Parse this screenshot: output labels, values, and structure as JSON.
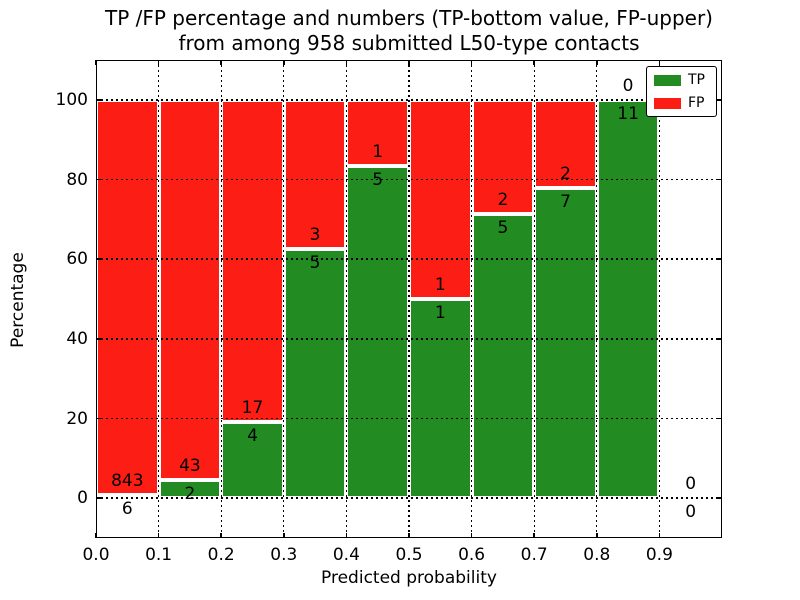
{
  "figure": {
    "title_line1": "TP /FP percentage and numbers (TP-bottom value, FP-upper)",
    "title_line2": "from among 958 submitted L50-type contacts"
  },
  "chart_data": {
    "type": "bar",
    "stacked": true,
    "normalized": "percent",
    "title": "TP /FP percentage and numbers (TP-bottom value, FP-upper) from among 958 submitted L50-type contacts",
    "xlabel": "Predicted probability",
    "ylabel": "Percentage",
    "total_contacts": 958,
    "xlim": [
      0.0,
      1.0
    ],
    "ylim": [
      -10,
      110
    ],
    "x_tick_labels": [
      "0.0",
      "0.1",
      "0.2",
      "0.3",
      "0.4",
      "0.5",
      "0.6",
      "0.7",
      "0.8",
      "0.9"
    ],
    "y_tick_values": [
      0,
      20,
      40,
      60,
      80,
      100
    ],
    "grid": "dotted black, on top of bars",
    "bar_edge_color": "#ffffff",
    "colors": {
      "tp": "#228b22",
      "fp": "#fc1d14"
    },
    "legend": {
      "position": "upper right",
      "entries": [
        {
          "label": "TP",
          "color": "#228b22"
        },
        {
          "label": "FP",
          "color": "#fc1d14"
        }
      ]
    },
    "bins": [
      {
        "range": [
          0.0,
          0.1
        ],
        "tp": 6,
        "fp": 843
      },
      {
        "range": [
          0.1,
          0.2
        ],
        "tp": 2,
        "fp": 43
      },
      {
        "range": [
          0.2,
          0.3
        ],
        "tp": 4,
        "fp": 17
      },
      {
        "range": [
          0.3,
          0.4
        ],
        "tp": 5,
        "fp": 3
      },
      {
        "range": [
          0.4,
          0.5
        ],
        "tp": 5,
        "fp": 1
      },
      {
        "range": [
          0.5,
          0.6
        ],
        "tp": 1,
        "fp": 1
      },
      {
        "range": [
          0.6,
          0.7
        ],
        "tp": 5,
        "fp": 2
      },
      {
        "range": [
          0.7,
          0.8
        ],
        "tp": 7,
        "fp": 2
      },
      {
        "range": [
          0.8,
          0.9
        ],
        "tp": 11,
        "fp": 0
      },
      {
        "range": [
          0.9,
          1.0
        ],
        "tp": 0,
        "fp": 0
      }
    ]
  }
}
